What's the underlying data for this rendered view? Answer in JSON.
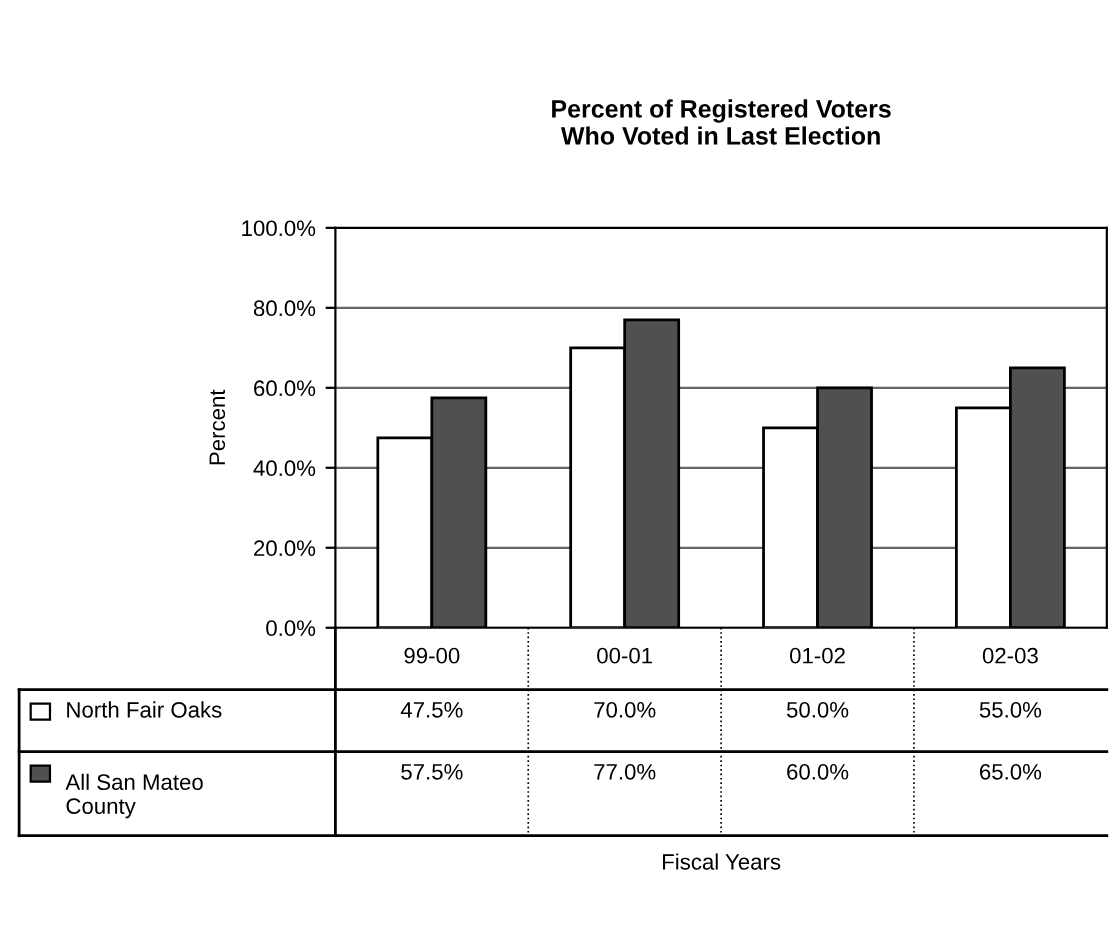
{
  "chart_data": {
    "type": "bar",
    "title": "Percent of Registered Voters\nWho Voted in Last Election",
    "annotations": [
      "Fiscal Years"
    ],
    "ylabel": "Percent",
    "categories": [
      "99-00",
      "00-01",
      "01-02",
      "02-03"
    ],
    "series": [
      {
        "name": "North Fair Oaks",
        "color": "#ffffff",
        "values": [
          47.5,
          70.0,
          50.0,
          55.0
        ],
        "value_labels": [
          "47.5%",
          "70.0%",
          "50.0%",
          "55.0%"
        ]
      },
      {
        "name": "All San Mateo\nCounty",
        "color": "#505050",
        "values": [
          57.5,
          77.0,
          60.0,
          65.0
        ],
        "value_labels": [
          "57.5%",
          "77.0%",
          "60.0%",
          "65.0%"
        ]
      }
    ],
    "ylim": [
      0,
      100
    ],
    "yticks": [
      {
        "value": 0,
        "label": "0.0%"
      },
      {
        "value": 20,
        "label": "20.0%"
      },
      {
        "value": 40,
        "label": "40.0%"
      },
      {
        "value": 60,
        "label": "60.0%"
      },
      {
        "value": 80,
        "label": "80.0%"
      },
      {
        "value": 100,
        "label": "100.0%"
      }
    ],
    "grid": "y",
    "legend": "bottom"
  }
}
